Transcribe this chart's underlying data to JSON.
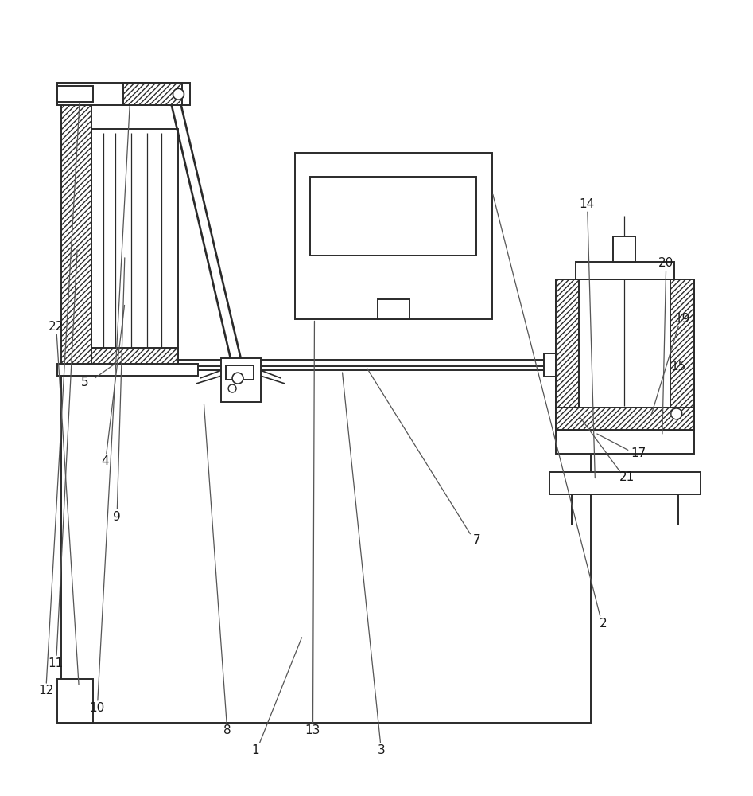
{
  "figsize": [
    9.47,
    10.0
  ],
  "dpi": 100,
  "lw": 1.4,
  "tlw": 0.9,
  "ec": "#2a2a2a",
  "hatch_ec": "#2a2a2a",
  "label_fs": 11,
  "label_color": "#1a1a1a"
}
